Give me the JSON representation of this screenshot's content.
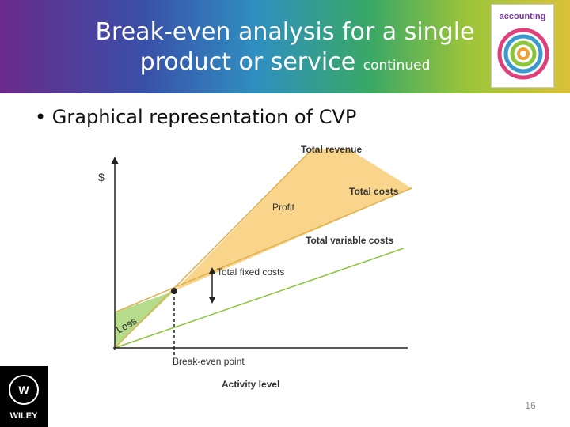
{
  "header": {
    "title": "Break-even analysis for a single product or service",
    "suffix": "continued"
  },
  "bullet": "Graphical representation of CVP",
  "diagram": {
    "y_axis": "$",
    "x_axis": "Activity level",
    "labels": {
      "total_revenue": "Total revenue",
      "total_costs": "Total costs",
      "profit": "Profit",
      "total_variable_costs": "Total variable costs",
      "total_fixed_costs": "Total fixed costs",
      "loss": "Loss",
      "break_even_point": "Break-even point"
    }
  },
  "logo": "WILEY",
  "book": "accounting",
  "page_number": "16"
}
